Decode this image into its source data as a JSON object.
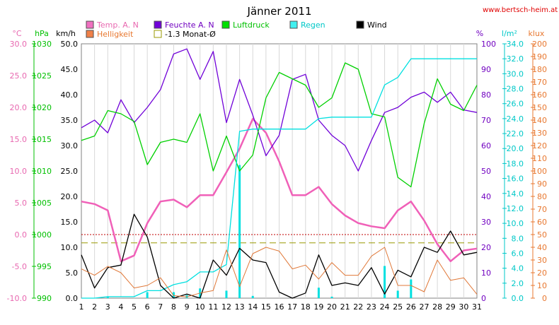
{
  "chart_data": {
    "type": "line",
    "title": "Jänner 2011",
    "source": "www.bertsch-heim.at",
    "x": [
      1,
      2,
      3,
      4,
      5,
      6,
      7,
      8,
      9,
      10,
      11,
      12,
      13,
      14,
      15,
      16,
      17,
      18,
      19,
      20,
      21,
      22,
      23,
      24,
      25,
      26,
      27,
      28,
      29,
      30,
      31
    ],
    "axes": {
      "temp": {
        "label": "°C",
        "min": -10,
        "max": 30,
        "step": 5,
        "color": "#e868b0",
        "tick_labels": [
          "-10.0",
          "-5.0",
          "0.0",
          "5.0",
          "10.0",
          "15.0",
          "20.0",
          "25.0",
          "30.0"
        ]
      },
      "hpa": {
        "label": "hPa",
        "min": 990,
        "max": 1030,
        "step": 5,
        "color": "#00c000",
        "tick_labels": [
          "990",
          "995",
          "1000",
          "1005",
          "1010",
          "1015",
          "1020",
          "1025",
          "1030"
        ]
      },
      "kmh": {
        "label": "km/h",
        "min": 0,
        "max": 50,
        "step": 5,
        "color": "#000000",
        "tick_labels": [
          "0.0",
          "5.0",
          "10.0",
          "15.0",
          "20.0",
          "25.0",
          "30.0",
          "35.0",
          "40.0",
          "45.0",
          "50.0"
        ]
      },
      "pct": {
        "label": "%",
        "min": 0,
        "max": 100,
        "step": 10,
        "color": "#7000c0",
        "tick_labels": [
          "0",
          "10",
          "20",
          "30",
          "40",
          "50",
          "60",
          "70",
          "80",
          "90",
          "100"
        ]
      },
      "lm2": {
        "label": "l/m²",
        "min": 0,
        "max": 34,
        "step": 2,
        "color": "#00c8c8",
        "tick_labels": [
          "0.0",
          "2.0",
          "4.0",
          "6.0",
          "8.0",
          "10.0",
          "12.0",
          "14.0",
          "16.0",
          "18.0",
          "20.0",
          "22.0",
          "24.0",
          "26.0",
          "28.0",
          "30.0",
          "32.0",
          "34.0"
        ]
      },
      "klux": {
        "label": "klux",
        "min": 0,
        "max": 200,
        "step": 10,
        "color": "#e87830",
        "tick_labels": [
          "0",
          "10",
          "20",
          "30",
          "40",
          "50",
          "60",
          "70",
          "80",
          "90",
          "100",
          "110",
          "120",
          "130",
          "140",
          "150",
          "160",
          "170",
          "180",
          "190",
          "200"
        ]
      }
    },
    "legend": {
      "temp": "Temp. A. N",
      "light": "Helligkeit",
      "humidity": "Feuchte A. N",
      "avg": "-1.3 Monat-Ø",
      "pressure": "Luftdruck",
      "rain": "Regen",
      "wind": "Wind"
    },
    "series": [
      {
        "name": "Temp. A. N",
        "axis": "temp",
        "color": "#f060b8",
        "width": 2.5,
        "values": [
          5.2,
          4.8,
          3.8,
          -4.2,
          -3.3,
          1.8,
          5.2,
          5.5,
          4.3,
          6.2,
          6.2,
          9.8,
          13.5,
          18.2,
          16.0,
          11.5,
          6.2,
          6.2,
          7.5,
          4.8,
          3.0,
          1.8,
          1.3,
          1.0,
          3.8,
          5.2,
          2.2,
          -1.5,
          -4.2,
          -2.5,
          -2.2
        ]
      },
      {
        "name": "Feuchte A. N",
        "axis": "pct",
        "color": "#7000d8",
        "width": 1.3,
        "values": [
          67,
          70,
          65,
          78,
          69,
          75,
          82,
          96,
          98,
          86,
          97,
          69,
          86,
          72,
          56,
          64,
          86,
          88,
          70,
          64,
          60,
          50,
          62,
          73,
          75,
          79,
          81,
          77,
          81,
          74,
          73
        ]
      },
      {
        "name": "Luftdruck",
        "axis": "hpa",
        "color": "#00d000",
        "width": 1.3,
        "values": [
          1014.8,
          1015.5,
          1019.5,
          1019.0,
          1017.8,
          1011.0,
          1014.5,
          1015.0,
          1014.5,
          1019.0,
          1010.0,
          1015.5,
          1010.0,
          1012.5,
          1021.5,
          1025.5,
          1024.5,
          1023.5,
          1020.0,
          1021.5,
          1027.0,
          1026.0,
          1019.0,
          1018.5,
          1009.0,
          1007.5,
          1017.5,
          1024.5,
          1020.5,
          1019.5,
          1023.5
        ]
      },
      {
        "name": "Regen",
        "axis": "lm2",
        "color": "#00e0e0",
        "width": 1.3,
        "values": [
          0,
          0,
          0.2,
          0.2,
          0.2,
          1.0,
          1.0,
          1.8,
          2.2,
          3.5,
          3.5,
          4.5,
          22.3,
          22.6,
          22.6,
          22.6,
          22.6,
          22.6,
          24.0,
          24.2,
          24.2,
          24.2,
          24.2,
          28.5,
          29.5,
          32.0,
          32.0,
          32.0,
          32.0,
          32.0,
          32.0
        ]
      },
      {
        "name": "Regen (Tag)",
        "axis": "lm2",
        "color": "#00e0e0",
        "type": "bar",
        "values": [
          0,
          0,
          0.2,
          0,
          0,
          0.8,
          0,
          0.8,
          0.4,
          1.3,
          0,
          1.0,
          17.8,
          0.3,
          0,
          0,
          0,
          0,
          1.4,
          0.2,
          0,
          0,
          0,
          4.3,
          1.0,
          2.5,
          0,
          0,
          0,
          0,
          0
        ]
      },
      {
        "name": "Wind",
        "axis": "kmh",
        "color": "#000000",
        "width": 1.3,
        "values": [
          8.5,
          2.0,
          6.0,
          6.5,
          16.5,
          12.0,
          2.5,
          0,
          0.8,
          0,
          7.5,
          4.5,
          9.8,
          7.5,
          7.0,
          1.2,
          0,
          1.0,
          8.5,
          2.5,
          3.0,
          2.5,
          6.0,
          0.8,
          5.5,
          4.2,
          10.0,
          9.0,
          13.2,
          8.5,
          9.0
        ]
      },
      {
        "name": "Helligkeit",
        "axis": "klux",
        "color": "#e07838",
        "width": 1.0,
        "values": [
          23,
          18,
          25,
          20,
          8,
          10,
          16,
          2,
          1,
          4,
          6,
          38,
          9,
          35,
          40,
          37,
          23,
          26,
          15,
          28,
          18,
          18,
          33,
          40,
          10,
          10,
          5,
          30,
          14,
          16,
          3
        ]
      }
    ],
    "reference_lines": [
      {
        "name": "-1.3 Monat-Ø",
        "axis": "temp",
        "value": -1.3,
        "color": "#989800",
        "style": "dashed"
      },
      {
        "name": "0.0",
        "axis": "temp",
        "value": 0.0,
        "color": "#c00000",
        "style": "dotted"
      }
    ]
  }
}
